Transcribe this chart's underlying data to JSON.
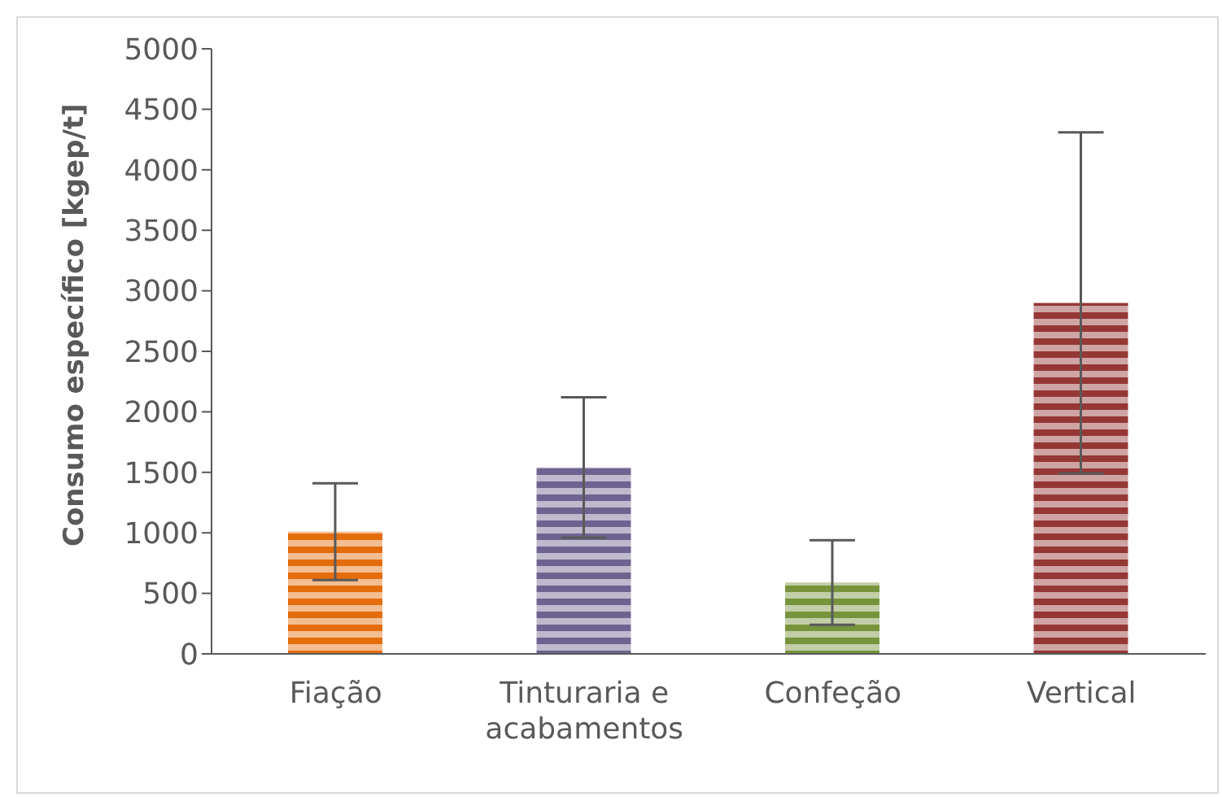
{
  "chart_data": {
    "type": "bar",
    "ylabel": "Consumo específico [kgep/t]",
    "categories": [
      "Fiação",
      "Tinturaria e acabamentos",
      "Confeção",
      "Vertical"
    ],
    "values": [
      1010,
      1540,
      590,
      2900
    ],
    "errors": [
      400,
      580,
      350,
      1410
    ],
    "colors": [
      "#e46c0a",
      "#6e6390",
      "#77933c",
      "#953735"
    ],
    "ylim": [
      0,
      5000
    ],
    "yticks": [
      0,
      500,
      1000,
      1500,
      2000,
      2500,
      3000,
      3500,
      4000,
      4500,
      5000
    ],
    "grid": false,
    "legend": false
  }
}
